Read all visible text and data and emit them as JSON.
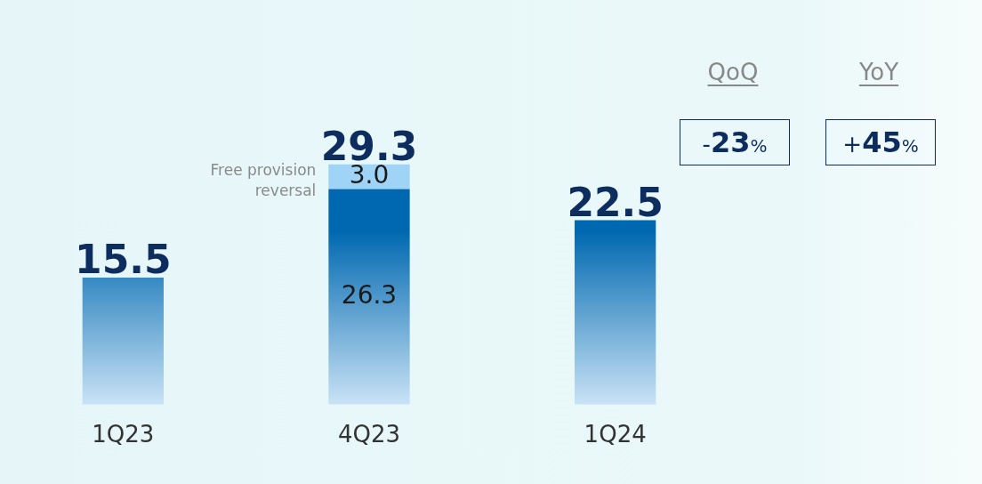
{
  "chart_data": {
    "type": "bar",
    "stacked": true,
    "categories": [
      "1Q23",
      "4Q23",
      "1Q24"
    ],
    "series": [
      {
        "color": "#0068b0",
        "values": [
          15.5,
          26.3,
          22.5
        ],
        "value_labels": [
          null,
          "26.3",
          null
        ]
      },
      {
        "name": "Free provision reversal",
        "color": "#9fd4f6",
        "values": [
          null,
          3.0,
          null
        ],
        "value_labels": [
          null,
          "3.0",
          null
        ]
      }
    ],
    "totals": [
      "15.5",
      "29.3",
      "22.5"
    ],
    "annotations": [
      "QoQ",
      "-23%",
      "YoY",
      "+45%"
    ],
    "grid": false,
    "legend": false
  }
}
